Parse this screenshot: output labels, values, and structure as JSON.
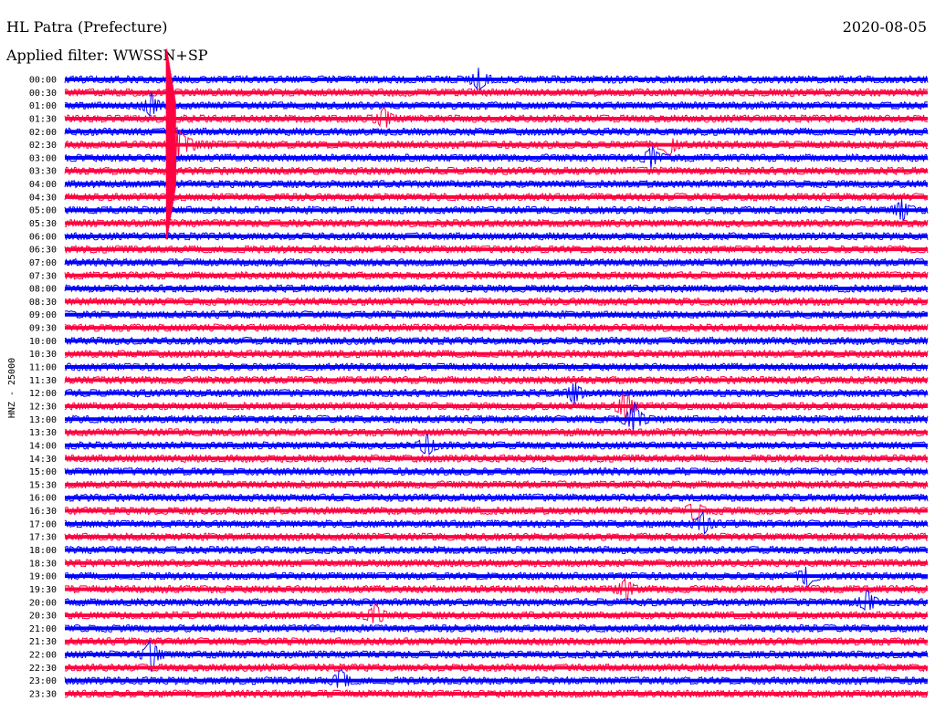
{
  "header": {
    "station": "HL Patra (Prefecture)",
    "date": "2020-08-05",
    "filter": "Applied filter: WWSSN+SP"
  },
  "chart_data": {
    "type": "line",
    "title": "HL Patra (Prefecture)",
    "ylabel": "HNZ - 25000",
    "xlabel": "",
    "categories": [
      "00:00",
      "00:30",
      "01:00",
      "01:30",
      "02:00",
      "02:30",
      "03:00",
      "03:30",
      "04:00",
      "04:30",
      "05:00",
      "05:30",
      "06:00",
      "06:30",
      "07:00",
      "07:30",
      "08:00",
      "08:30",
      "09:00",
      "09:30",
      "10:00",
      "10:30",
      "11:00",
      "11:30",
      "12:00",
      "12:30",
      "13:00",
      "13:30",
      "14:00",
      "14:30",
      "15:00",
      "15:30",
      "16:00",
      "16:30",
      "17:00",
      "17:30",
      "18:00",
      "18:30",
      "19:00",
      "19:30",
      "20:00",
      "20:30",
      "21:00",
      "21:30",
      "22:00",
      "22:30",
      "23:00",
      "23:30"
    ],
    "trace_colors": [
      "#0000ff",
      "#ff0040"
    ],
    "grid": false,
    "events": [
      {
        "row": "02:30",
        "x_fraction": 0.12,
        "amplitude": "large"
      },
      {
        "row": "00:00",
        "x_fraction": 0.48,
        "amplitude": "small"
      },
      {
        "row": "01:00",
        "x_fraction": 0.1,
        "amplitude": "small"
      },
      {
        "row": "01:30",
        "x_fraction": 0.37,
        "amplitude": "small"
      },
      {
        "row": "02:30",
        "x_fraction": 0.7,
        "amplitude": "small"
      },
      {
        "row": "03:00",
        "x_fraction": 0.68,
        "amplitude": "small"
      },
      {
        "row": "05:00",
        "x_fraction": 0.97,
        "amplitude": "small"
      },
      {
        "row": "12:00",
        "x_fraction": 0.59,
        "amplitude": "small"
      },
      {
        "row": "12:30",
        "x_fraction": 0.65,
        "amplitude": "medium"
      },
      {
        "row": "13:00",
        "x_fraction": 0.66,
        "amplitude": "medium"
      },
      {
        "row": "14:00",
        "x_fraction": 0.42,
        "amplitude": "small"
      },
      {
        "row": "16:30",
        "x_fraction": 0.73,
        "amplitude": "small"
      },
      {
        "row": "17:00",
        "x_fraction": 0.74,
        "amplitude": "small"
      },
      {
        "row": "19:00",
        "x_fraction": 0.86,
        "amplitude": "small"
      },
      {
        "row": "19:30",
        "x_fraction": 0.65,
        "amplitude": "small"
      },
      {
        "row": "20:00",
        "x_fraction": 0.93,
        "amplitude": "small"
      },
      {
        "row": "20:30",
        "x_fraction": 0.36,
        "amplitude": "small"
      },
      {
        "row": "22:00",
        "x_fraction": 0.1,
        "amplitude": "medium"
      },
      {
        "row": "23:00",
        "x_fraction": 0.32,
        "amplitude": "small"
      }
    ]
  }
}
